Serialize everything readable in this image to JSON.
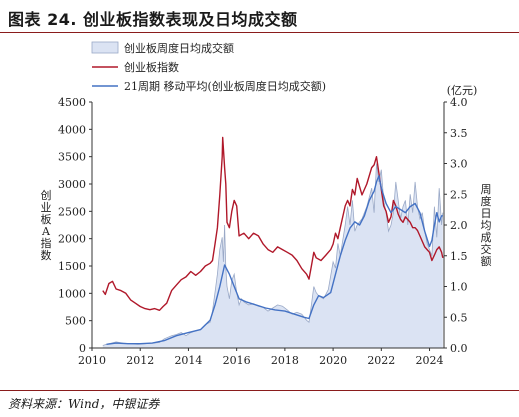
{
  "figure": {
    "title": "图表 24. 创业板指数表现及日均成交额",
    "source": "资料来源：Wind，中银证券"
  },
  "chart_data": {
    "type": "area",
    "legend": {
      "placement": "top-left"
    },
    "left_axis": {
      "ylim": [
        0,
        4500
      ],
      "ticks": [
        "0",
        "500",
        "1000",
        "1500",
        "2000",
        "2500",
        "3000",
        "3500",
        "4000",
        "4500"
      ],
      "label": "创业板A指数"
    },
    "right_axis": {
      "ylim": [
        0,
        4.0
      ],
      "ticks": [
        "0.0",
        "0.5",
        "1.0",
        "1.5",
        "2.0",
        "2.5",
        "3.0",
        "3.5",
        "4.0"
      ],
      "label": "周度日均成交额",
      "unit": "(亿元)"
    },
    "x_axis": {
      "xlim": [
        2010,
        2024.6
      ],
      "ticks": [
        "2010",
        "2012",
        "2014",
        "2016",
        "2018",
        "2020",
        "2022",
        "2024"
      ]
    },
    "colors": {
      "index": "#b0182a",
      "ma": "#4472c4",
      "area_fill": "#dbe3f3",
      "area_stroke": "#9aa9c7"
    },
    "series": [
      {
        "name": "创业板周度日均成交额",
        "axis": "right",
        "style": "area",
        "x": [
          2010.45,
          2010.6,
          2010.8,
          2011.0,
          2011.3,
          2011.6,
          2011.9,
          2012.2,
          2012.5,
          2012.8,
          2013.0,
          2013.3,
          2013.5,
          2013.7,
          2013.9,
          2014.1,
          2014.3,
          2014.5,
          2014.7,
          2014.9,
          2015.0,
          2015.1,
          2015.2,
          2015.3,
          2015.4,
          2015.45,
          2015.5,
          2015.55,
          2015.6,
          2015.7,
          2015.8,
          2015.9,
          2016.0,
          2016.1,
          2016.2,
          2016.3,
          2016.5,
          2016.7,
          2016.9,
          2017.1,
          2017.3,
          2017.5,
          2017.7,
          2017.9,
          2018.1,
          2018.3,
          2018.5,
          2018.7,
          2018.9,
          2019.0,
          2019.1,
          2019.2,
          2019.3,
          2019.4,
          2019.6,
          2019.8,
          2020.0,
          2020.1,
          2020.2,
          2020.3,
          2020.5,
          2020.6,
          2020.7,
          2020.8,
          2020.9,
          2021.0,
          2021.2,
          2021.4,
          2021.6,
          2021.7,
          2021.8,
          2021.9,
          2022.0,
          2022.1,
          2022.2,
          2022.3,
          2022.4,
          2022.5,
          2022.6,
          2022.7,
          2022.8,
          2022.9,
          2023.0,
          2023.1,
          2023.2,
          2023.3,
          2023.4,
          2023.5,
          2023.6,
          2023.7,
          2023.8,
          2023.9,
          2024.0,
          2024.1,
          2024.2,
          2024.3,
          2024.4,
          2024.5,
          2024.55
        ],
        "values": [
          0.04,
          0.06,
          0.08,
          0.1,
          0.08,
          0.07,
          0.06,
          0.07,
          0.08,
          0.09,
          0.15,
          0.2,
          0.22,
          0.25,
          0.2,
          0.25,
          0.28,
          0.3,
          0.38,
          0.42,
          0.6,
          0.9,
          1.2,
          1.6,
          1.8,
          1.4,
          2.0,
          1.3,
          1.0,
          0.8,
          1.1,
          1.2,
          0.9,
          0.7,
          0.8,
          0.75,
          0.7,
          0.72,
          0.68,
          0.66,
          0.6,
          0.65,
          0.7,
          0.68,
          0.62,
          0.55,
          0.58,
          0.55,
          0.45,
          0.42,
          0.7,
          1.0,
          0.9,
          0.85,
          0.8,
          0.95,
          1.4,
          1.3,
          1.7,
          1.5,
          2.0,
          2.3,
          2.0,
          2.4,
          1.9,
          2.0,
          2.1,
          2.3,
          2.6,
          2.2,
          3.0,
          2.7,
          2.9,
          2.4,
          2.2,
          1.9,
          2.0,
          2.2,
          2.7,
          2.4,
          2.1,
          2.3,
          2.4,
          2.0,
          2.5,
          2.2,
          2.7,
          2.3,
          2.1,
          2.2,
          1.9,
          1.7,
          1.6,
          1.5,
          2.3,
          1.8,
          2.6,
          2.0,
          2.2
        ]
      },
      {
        "name": "创业板指数",
        "axis": "left",
        "style": "line",
        "x": [
          2010.45,
          2010.55,
          2010.7,
          2010.85,
          2011.0,
          2011.2,
          2011.4,
          2011.6,
          2011.8,
          2012.0,
          2012.2,
          2012.4,
          2012.6,
          2012.8,
          2012.95,
          2013.1,
          2013.3,
          2013.5,
          2013.7,
          2013.9,
          2014.1,
          2014.3,
          2014.5,
          2014.7,
          2014.9,
          2015.0,
          2015.1,
          2015.2,
          2015.3,
          2015.4,
          2015.42,
          2015.5,
          2015.55,
          2015.6,
          2015.7,
          2015.8,
          2015.9,
          2016.0,
          2016.1,
          2016.3,
          2016.5,
          2016.7,
          2016.9,
          2017.1,
          2017.3,
          2017.5,
          2017.7,
          2017.9,
          2018.1,
          2018.3,
          2018.5,
          2018.7,
          2018.9,
          2019.0,
          2019.1,
          2019.2,
          2019.3,
          2019.5,
          2019.7,
          2019.9,
          2020.0,
          2020.1,
          2020.2,
          2020.3,
          2020.5,
          2020.6,
          2020.7,
          2020.8,
          2020.9,
          2021.0,
          2021.2,
          2021.4,
          2021.6,
          2021.7,
          2021.8,
          2021.9,
          2022.0,
          2022.1,
          2022.2,
          2022.3,
          2022.4,
          2022.5,
          2022.6,
          2022.7,
          2022.8,
          2022.9,
          2023.0,
          2023.1,
          2023.2,
          2023.3,
          2023.4,
          2023.5,
          2023.6,
          2023.7,
          2023.8,
          2023.9,
          2024.0,
          2024.1,
          2024.2,
          2024.3,
          2024.4,
          2024.5,
          2024.55
        ],
        "values": [
          1050,
          980,
          1180,
          1220,
          1080,
          1050,
          1000,
          880,
          820,
          760,
          720,
          700,
          720,
          690,
          760,
          820,
          1050,
          1150,
          1250,
          1300,
          1400,
          1330,
          1400,
          1500,
          1550,
          1600,
          1900,
          2200,
          2800,
          3500,
          3850,
          3300,
          3000,
          2300,
          2200,
          2500,
          2700,
          2600,
          2050,
          2100,
          2000,
          2100,
          2050,
          1900,
          1800,
          1750,
          1850,
          1800,
          1750,
          1700,
          1600,
          1450,
          1350,
          1260,
          1500,
          1750,
          1650,
          1600,
          1700,
          1800,
          1900,
          2100,
          2000,
          2200,
          2600,
          2700,
          2600,
          2900,
          2800,
          3100,
          2800,
          3000,
          3300,
          3350,
          3500,
          3200,
          2900,
          2600,
          2500,
          2300,
          2400,
          2700,
          2600,
          2450,
          2350,
          2300,
          2400,
          2350,
          2300,
          2200,
          2200,
          2150,
          2050,
          1950,
          1850,
          1800,
          1750,
          1600,
          1700,
          1800,
          1850,
          1750,
          1650
        ]
      },
      {
        "name": "21周期 移动平均(创业板周度日均成交额)",
        "axis": "right",
        "style": "line",
        "x": [
          2010.6,
          2011.0,
          2011.5,
          2012.0,
          2012.5,
          2013.0,
          2013.5,
          2014.0,
          2014.5,
          2014.9,
          2015.1,
          2015.3,
          2015.5,
          2015.7,
          2015.9,
          2016.1,
          2016.4,
          2016.8,
          2017.2,
          2017.6,
          2018.0,
          2018.4,
          2018.8,
          2019.0,
          2019.2,
          2019.4,
          2019.6,
          2019.9,
          2020.1,
          2020.3,
          2020.5,
          2020.7,
          2020.9,
          2021.1,
          2021.3,
          2021.5,
          2021.7,
          2021.8,
          2021.9,
          2022.0,
          2022.2,
          2022.4,
          2022.6,
          2022.8,
          2023.0,
          2023.2,
          2023.4,
          2023.6,
          2023.8,
          2024.0,
          2024.1,
          2024.2,
          2024.3,
          2024.4,
          2024.5,
          2024.55
        ],
        "values": [
          0.06,
          0.08,
          0.07,
          0.07,
          0.08,
          0.12,
          0.2,
          0.25,
          0.3,
          0.45,
          0.7,
          1.0,
          1.35,
          1.2,
          1.0,
          0.8,
          0.75,
          0.7,
          0.65,
          0.62,
          0.6,
          0.55,
          0.5,
          0.48,
          0.7,
          0.85,
          0.82,
          0.9,
          1.2,
          1.5,
          1.75,
          1.95,
          2.05,
          2.0,
          2.15,
          2.4,
          2.55,
          2.7,
          2.8,
          2.6,
          2.35,
          2.2,
          2.3,
          2.25,
          2.2,
          2.3,
          2.35,
          2.2,
          1.9,
          1.65,
          1.75,
          2.0,
          2.2,
          2.05,
          2.15,
          2.15
        ]
      }
    ]
  }
}
